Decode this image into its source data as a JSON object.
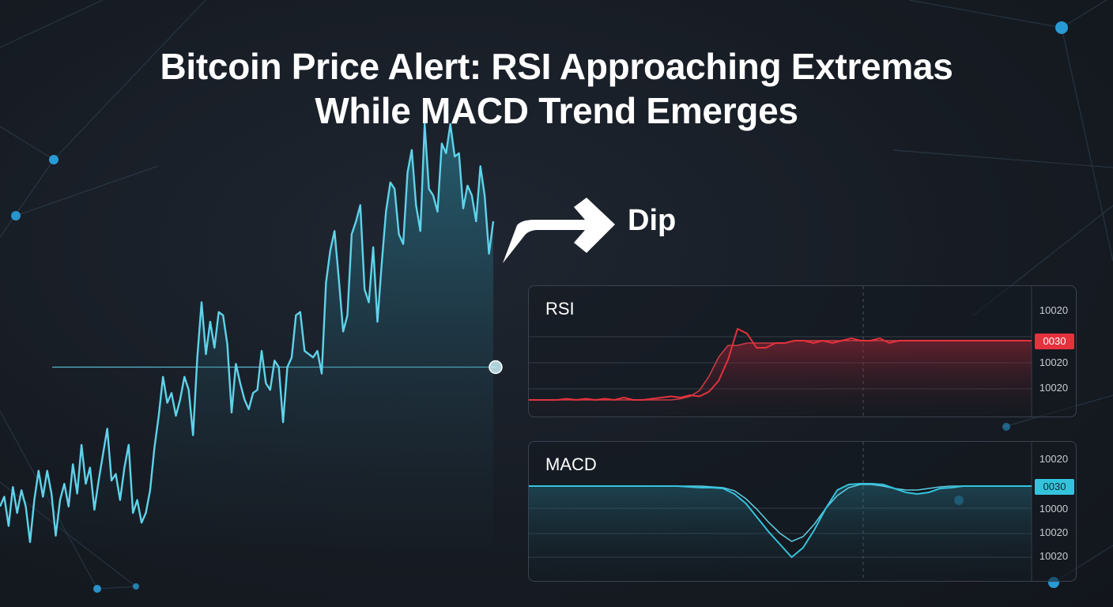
{
  "title": {
    "line1": "Bitcoin Price Alert: RSI Approaching Extremas",
    "line2": "While MACD Trend Emerges"
  },
  "annotation": {
    "label": "Dip"
  },
  "colors": {
    "price_line": "#5fd3ea",
    "rsi_line": "#e5323d",
    "macd_line": "#34c3dd",
    "background": "#171c24"
  },
  "rsi": {
    "label": "RSI",
    "ticks": [
      "10020",
      "10020",
      "10020"
    ],
    "badge": "0030"
  },
  "macd": {
    "label": "MACD",
    "ticks": [
      "10020",
      "10000",
      "10020",
      "10020"
    ],
    "badge": "0030"
  },
  "chart_data": [
    {
      "type": "area",
      "series": [
        {
          "values": [
            0.12,
            0.15,
            0.06,
            0.18,
            0.1,
            0.17,
            0.12,
            0.01,
            0.14,
            0.23,
            0.15,
            0.23,
            0.16,
            0.03,
            0.14,
            0.19,
            0.12,
            0.25,
            0.16,
            0.31,
            0.19,
            0.24,
            0.11,
            0.2,
            0.28,
            0.36,
            0.2,
            0.22,
            0.14,
            0.24,
            0.31,
            0.1,
            0.14,
            0.07,
            0.1,
            0.17,
            0.3,
            0.4,
            0.52,
            0.44,
            0.47,
            0.4,
            0.45,
            0.52,
            0.48,
            0.34,
            0.58,
            0.75,
            0.59,
            0.69,
            0.61,
            0.72,
            0.71,
            0.62,
            0.41,
            0.56,
            0.5,
            0.45,
            0.42,
            0.47,
            0.48,
            0.6,
            0.5,
            0.48,
            0.57,
            0.55,
            0.38,
            0.55,
            0.58,
            0.71,
            0.72,
            0.6,
            0.59,
            0.58,
            0.6,
            0.53,
            0.81,
            0.91,
            0.97,
            0.82,
            0.66,
            0.71,
            0.96,
            1.0,
            1.05,
            0.79,
            0.75,
            0.92,
            0.69,
            0.87,
            1.03,
            1.12,
            1.1,
            0.96,
            0.93,
            1.15,
            1.22,
            1.05,
            0.97,
            1.3,
            1.1,
            1.08,
            1.03,
            1.24,
            1.21,
            1.3,
            1.2,
            1.21,
            1.04,
            1.11,
            1.08,
            1.0,
            1.17,
            1.08,
            0.9,
            1.0
          ]
        }
      ],
      "reference_level": 0.55
    },
    {
      "type": "line",
      "panel": "RSI",
      "series": [
        {
          "values": [
            0,
            0,
            0,
            0,
            0.5,
            0,
            0.5,
            0,
            0.5,
            0,
            1,
            0,
            0,
            0.5,
            1,
            1.5,
            1,
            2,
            1.5,
            3.5,
            8,
            17,
            30,
            28,
            22,
            22,
            24,
            24,
            25,
            25,
            24,
            25,
            24,
            25,
            26,
            25,
            25,
            26,
            24,
            25,
            25,
            25,
            25,
            25,
            25,
            25,
            25,
            25,
            25,
            25,
            25,
            25,
            25,
            25
          ]
        },
        {
          "values": [
            0,
            0,
            0,
            0,
            0,
            0,
            0,
            0,
            0,
            0,
            0,
            0,
            0,
            0,
            0,
            0,
            0.5,
            1.5,
            4,
            10,
            18,
            23,
            23,
            24,
            24,
            24,
            24,
            24,
            25,
            25,
            25,
            25,
            25,
            25,
            25,
            25,
            25,
            25,
            25,
            25,
            25,
            25,
            25,
            25,
            25,
            25,
            25,
            25,
            25,
            25,
            25,
            25,
            25,
            25
          ]
        }
      ]
    },
    {
      "type": "line",
      "panel": "MACD",
      "series": [
        {
          "values": [
            0,
            0,
            0,
            0,
            0,
            0,
            0,
            0,
            0,
            0,
            0,
            0,
            0,
            0,
            -1,
            -2,
            -2,
            -3,
            -10,
            -22,
            -40,
            -58,
            -74,
            -90,
            -78,
            -55,
            -28,
            -5,
            2,
            3,
            3,
            2,
            -3,
            -8,
            -10,
            -8,
            -3,
            -2,
            0,
            0,
            0,
            0,
            0,
            0,
            0
          ]
        },
        {
          "values": [
            0,
            0,
            0,
            0,
            0,
            0,
            0,
            0,
            0,
            0,
            0,
            0,
            0,
            0,
            0,
            0,
            -1,
            -2,
            -6,
            -16,
            -30,
            -46,
            -60,
            -70,
            -64,
            -48,
            -28,
            -12,
            -2,
            2,
            2,
            0,
            -3,
            -5,
            -5,
            -3,
            -1,
            0,
            0,
            0,
            0,
            0,
            0,
            0,
            0
          ]
        }
      ]
    }
  ]
}
